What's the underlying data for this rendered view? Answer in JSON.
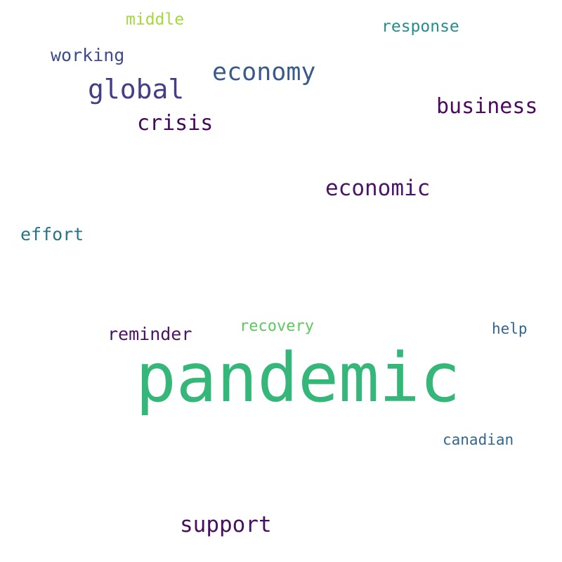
{
  "words": {
    "pandemic": {
      "text": "pandemic",
      "color": "#35b779"
    },
    "economy": {
      "text": "economy",
      "color": "#3b5a8c"
    },
    "global": {
      "text": "global",
      "color": "#433e85"
    },
    "business": {
      "text": "business",
      "color": "#4d0a5e"
    },
    "crisis": {
      "text": "crisis",
      "color": "#430a5a"
    },
    "economic": {
      "text": "economic",
      "color": "#4a1467"
    },
    "support": {
      "text": "support",
      "color": "#46105f"
    },
    "reminder": {
      "text": "reminder",
      "color": "#4b1463"
    },
    "working": {
      "text": "working",
      "color": "#3e4c8a"
    },
    "effort": {
      "text": "effort",
      "color": "#277585"
    },
    "response": {
      "text": "response",
      "color": "#21908d"
    },
    "middle": {
      "text": "middle",
      "color": "#a5d83d"
    },
    "recovery": {
      "text": "recovery",
      "color": "#5ec962"
    },
    "help": {
      "text": "help",
      "color": "#33648d"
    },
    "canadian": {
      "text": "canadian",
      "color": "#31688e"
    }
  }
}
